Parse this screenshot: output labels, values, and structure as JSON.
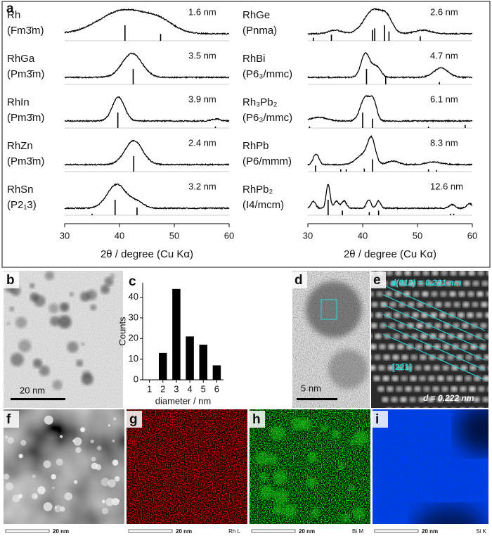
{
  "panel_labels": [
    "a",
    "b",
    "c",
    "d",
    "e",
    "f",
    "g",
    "h",
    "i"
  ],
  "xrd": {
    "xlim": [
      30,
      60
    ],
    "xticks": [
      30,
      40,
      50,
      60
    ],
    "xlabel": "2θ / degree (Cu Kα)",
    "left": [
      {
        "name": "Rh",
        "phase": "(Fm3̄m)",
        "size": "1.6 nm",
        "peaks": [
          [
            41,
            1,
            4.5
          ],
          [
            47.5,
            0.35,
            2.5
          ]
        ],
        "sticks": [
          [
            41,
            1
          ],
          [
            47.5,
            0.45
          ]
        ]
      },
      {
        "name": "RhGa",
        "phase": "(Pm3̄m)",
        "size": "3.5 nm",
        "peaks": [
          [
            42.3,
            1,
            1.8
          ]
        ],
        "sticks": [
          [
            42.5,
            1
          ]
        ]
      },
      {
        "name": "RhIn",
        "phase": "(Pm3̄m)",
        "size": "3.9 nm",
        "peaks": [
          [
            39.8,
            1,
            1.1
          ],
          [
            57.6,
            0.08,
            0.8
          ]
        ],
        "sticks": [
          [
            39.7,
            1
          ],
          [
            57.5,
            0.1
          ]
        ]
      },
      {
        "name": "RhZn",
        "phase": "(Pm3̄m)",
        "size": "2.4 nm",
        "peaks": [
          [
            42.6,
            1,
            1.6
          ]
        ],
        "sticks": [
          [
            42.6,
            1
          ]
        ]
      },
      {
        "name": "RhSn",
        "phase": "(P2₁3)",
        "size": "3.2 nm",
        "peaks": [
          [
            39.5,
            1,
            1.7
          ],
          [
            43.2,
            0.25,
            1.2
          ]
        ],
        "sticks": [
          [
            35,
            0.1
          ],
          [
            39.2,
            1
          ],
          [
            43.2,
            0.5
          ]
        ]
      }
    ],
    "right": [
      {
        "name": "RhGe",
        "phase": "(Pnma)",
        "size": "2.6 nm",
        "peaks": [
          [
            42,
            1,
            1.7
          ],
          [
            44.5,
            0.5,
            1
          ],
          [
            35,
            0.15,
            1.2
          ],
          [
            51,
            0.15,
            1.5
          ]
        ],
        "sticks": [
          [
            31,
            0.2
          ],
          [
            34.3,
            0.4
          ],
          [
            41.8,
            0.7
          ],
          [
            42.2,
            0.8
          ],
          [
            44,
            1
          ],
          [
            44.8,
            0.6
          ],
          [
            50.5,
            0.3
          ]
        ]
      },
      {
        "name": "RhBi",
        "phase": "(P6₃/mmc)",
        "size": "4.7 nm",
        "peaks": [
          [
            40.5,
            1,
            0.8
          ],
          [
            42.5,
            0.45,
            0.8
          ],
          [
            54.3,
            0.4,
            1.3
          ]
        ],
        "sticks": [
          [
            40.7,
            1
          ],
          [
            44.2,
            0.5
          ],
          [
            54,
            0.15
          ]
        ]
      },
      {
        "name": "Rh₃Pb₂",
        "phase": "(P6₃/mmc)",
        "size": "6.1 nm",
        "peaks": [
          [
            40.5,
            1,
            0.9
          ],
          [
            42,
            0.7,
            0.6
          ],
          [
            32,
            0.15,
            1.5
          ]
        ],
        "sticks": [
          [
            30.3,
            0.1
          ],
          [
            40,
            1
          ],
          [
            41.8,
            0.6
          ],
          [
            52,
            0.1
          ],
          [
            58.7,
            0.2
          ]
        ]
      },
      {
        "name": "RhPb",
        "phase": "(P6/mmm)",
        "size": "8.3 nm",
        "peaks": [
          [
            31.5,
            0.45,
            0.5
          ],
          [
            40,
            0.4,
            1.2
          ],
          [
            41.6,
            1,
            0.7
          ],
          [
            45.5,
            0.15,
            1
          ],
          [
            53,
            0.1,
            1.5
          ]
        ],
        "sticks": [
          [
            31.4,
            0.4
          ],
          [
            36,
            0.15
          ],
          [
            37,
            0.15
          ],
          [
            40.3,
            0.2
          ],
          [
            41.8,
            0.8
          ],
          [
            52,
            0.15
          ],
          [
            53.5,
            0.1
          ]
        ]
      },
      {
        "name": "RhPb₂",
        "phase": "(I4/mcm)",
        "size": "12.6 nm",
        "peaks": [
          [
            31,
            0.3,
            0.4
          ],
          [
            33.7,
            1,
            0.35
          ],
          [
            35.2,
            0.3,
            0.4
          ],
          [
            36.6,
            0.3,
            0.45
          ],
          [
            41.1,
            0.35,
            0.4
          ],
          [
            42.9,
            0.3,
            0.4
          ],
          [
            56.3,
            0.15,
            0.5
          ],
          [
            59.5,
            0.2,
            0.5
          ]
        ],
        "sticks": [
          [
            33.7,
            1
          ],
          [
            36.3,
            0.3
          ],
          [
            41.2,
            0.2
          ],
          [
            42.9,
            0.3
          ],
          [
            56,
            0.1
          ],
          [
            56.6,
            0.1
          ]
        ]
      }
    ]
  },
  "chart_data": {
    "type": "bar",
    "x": [
      2,
      3,
      4,
      5,
      6
    ],
    "values": [
      13,
      44,
      21,
      17,
      7
    ],
    "xlim": [
      0.5,
      6.5
    ],
    "xticks": [
      1,
      2,
      3,
      4,
      5,
      6
    ],
    "ylim": [
      0,
      47
    ],
    "yticks": [
      0,
      10,
      20,
      30,
      40
    ],
    "xlabel": "diameter / nm",
    "ylabel": "Counts",
    "color": "#000000"
  },
  "micrographs": {
    "b_scale": "20 nm",
    "d_scale": "5 nm",
    "e_spacing": "d(012) = 0.221 nm",
    "e_direction": "[22̅1]",
    "e_measured": "d = 0.222 nm",
    "map_scales": [
      "20 nm",
      "20 nm",
      "20 nm",
      "20 nm"
    ],
    "map_elements": [
      "Rh L",
      "Bi M",
      "Si K"
    ]
  }
}
